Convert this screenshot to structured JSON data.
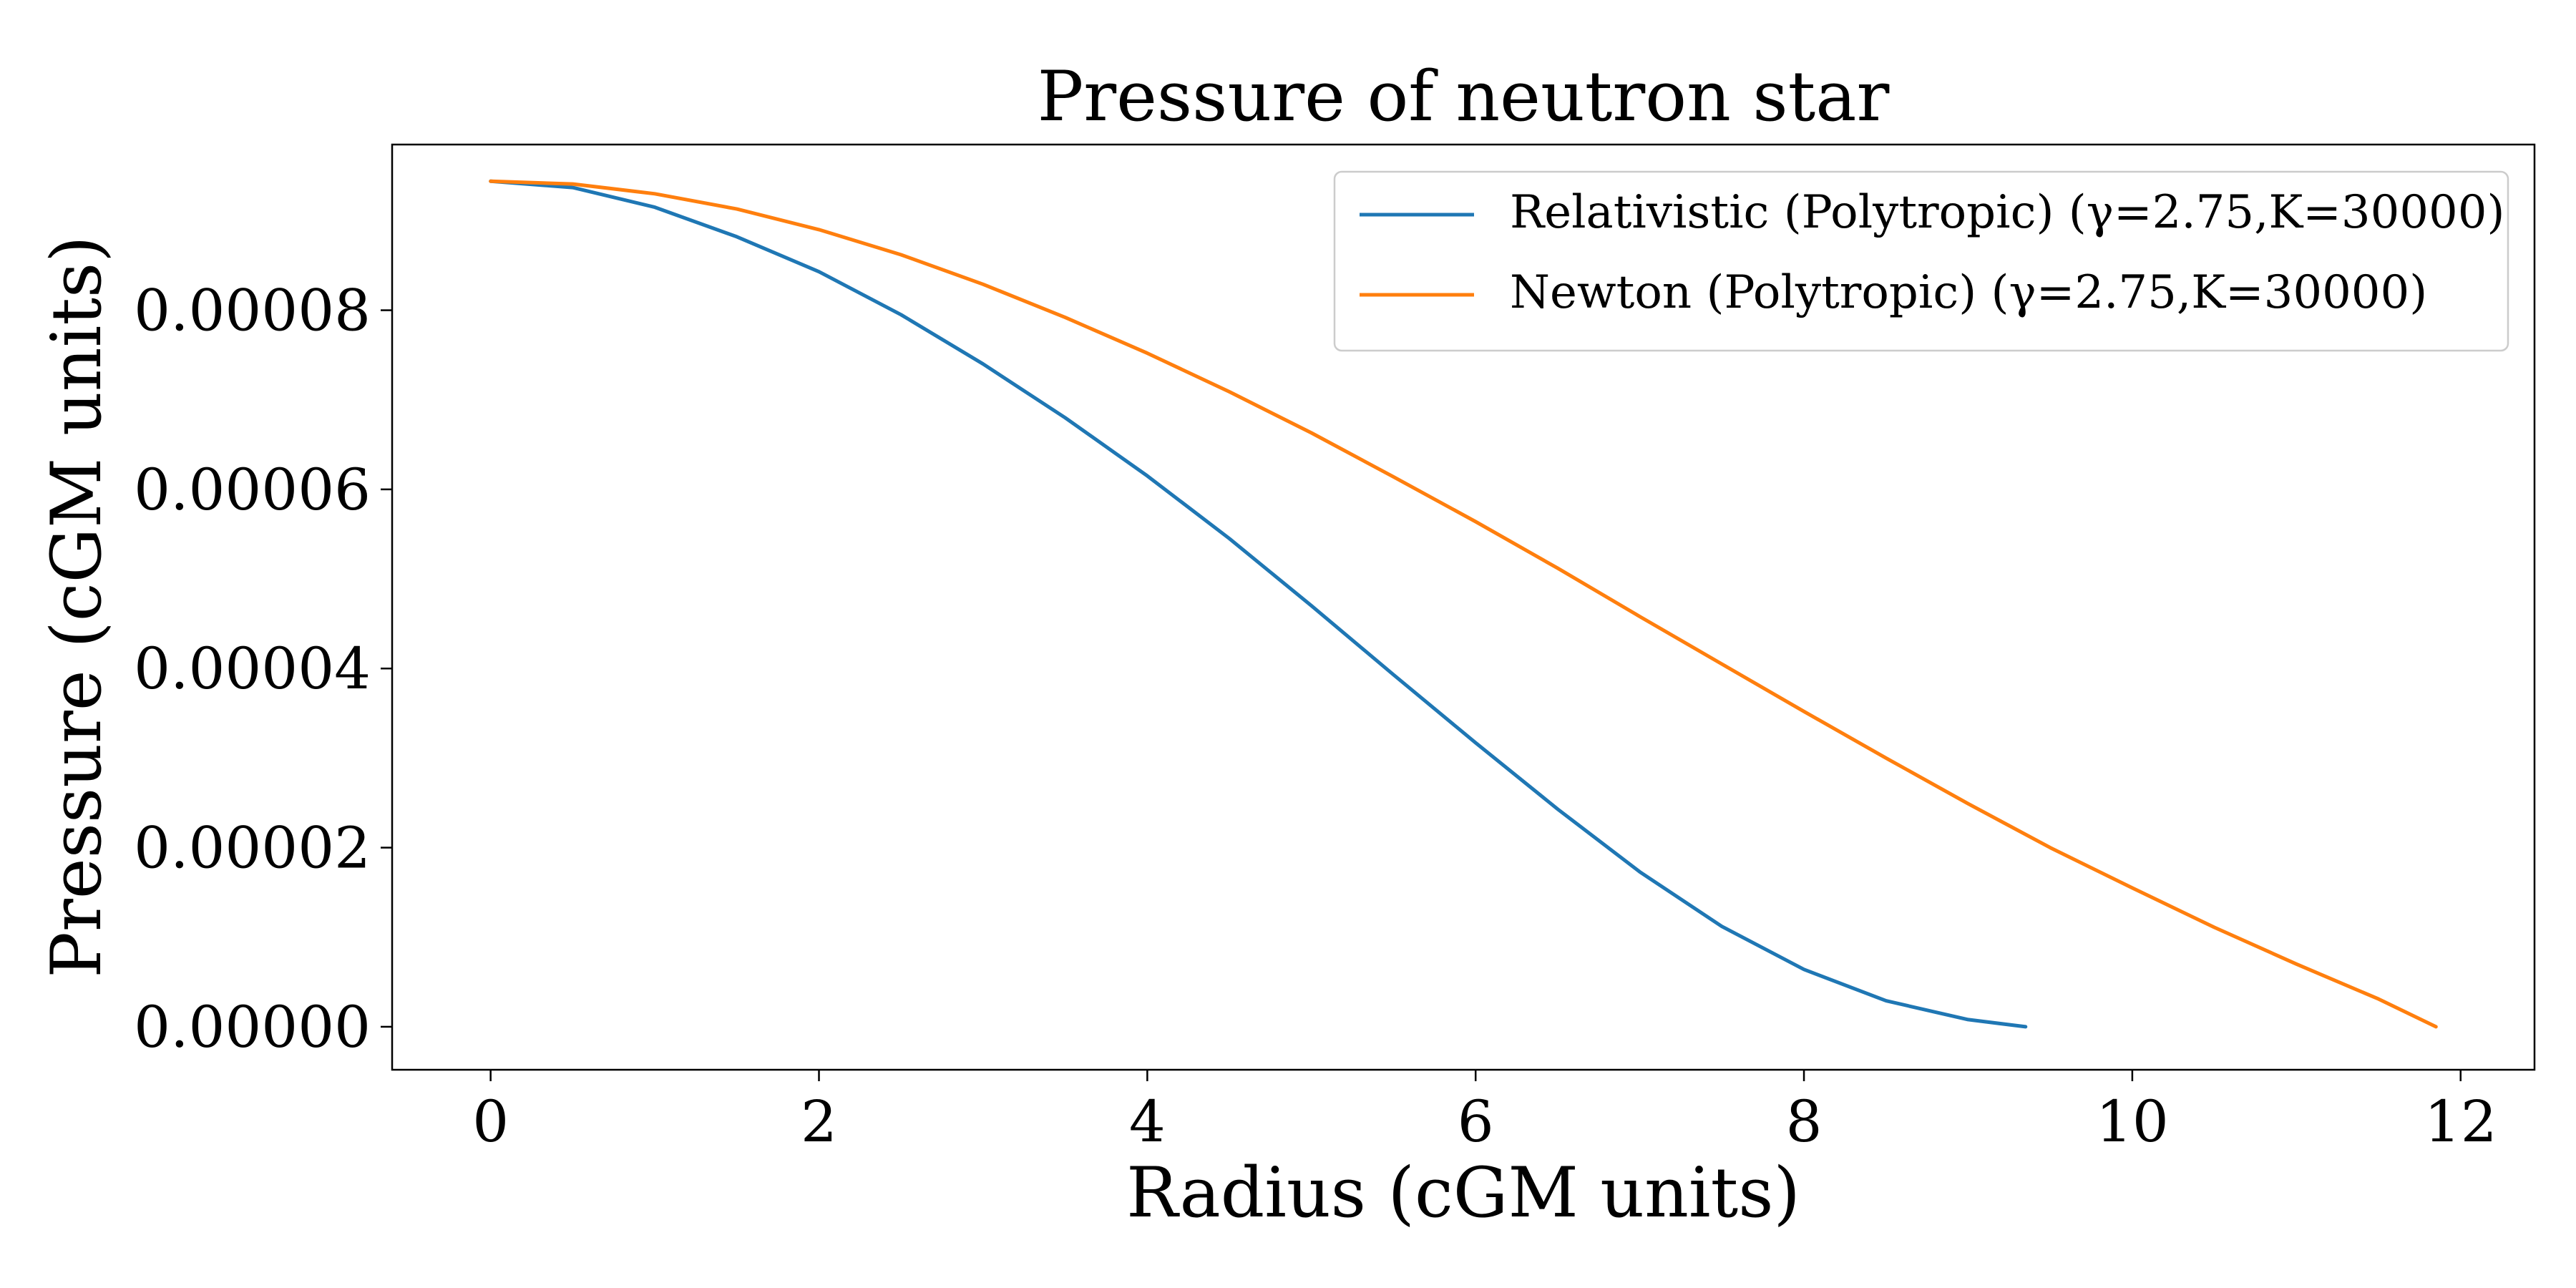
{
  "chart_data": {
    "type": "line",
    "title": "Pressure of neutron star",
    "xlabel": "Radius (cGM units)",
    "ylabel": "Pressure (cGM units)",
    "xlim": [
      -0.6,
      12.45
    ],
    "ylim": [
      -4.8e-06,
      9.85e-05
    ],
    "x_ticks": [
      0,
      2,
      4,
      6,
      8,
      10,
      12
    ],
    "x_tick_labels": [
      "0",
      "2",
      "4",
      "6",
      "8",
      "10",
      "12"
    ],
    "y_ticks": [
      0,
      2e-05,
      4e-05,
      6e-05,
      8e-05
    ],
    "y_tick_labels": [
      "0.00000",
      "0.00002",
      "0.00004",
      "0.00006",
      "0.00008"
    ],
    "grid": false,
    "legend_position": "upper right",
    "series": [
      {
        "name": "Relativistic (Polytropic) (γ=2.75,K=30000)",
        "color": "#1f77b4",
        "x": [
          0,
          0.5,
          1.0,
          1.5,
          2.0,
          2.5,
          3.0,
          3.5,
          4.0,
          4.5,
          5.0,
          5.5,
          6.0,
          6.5,
          7.0,
          7.5,
          8.0,
          8.5,
          9.0,
          9.35
        ],
        "y": [
          9.44e-05,
          9.37e-05,
          9.15e-05,
          8.82e-05,
          8.43e-05,
          7.95e-05,
          7.4e-05,
          6.8e-05,
          6.15e-05,
          5.45e-05,
          4.7e-05,
          3.93e-05,
          3.17e-05,
          2.43e-05,
          1.73e-05,
          1.12e-05,
          6.4e-06,
          2.9e-06,
          8e-07,
          0.0
        ]
      },
      {
        "name": "Newton (Polytropic) (γ=2.75,K=30000)",
        "color": "#ff7f0e",
        "x": [
          0,
          0.5,
          1.0,
          1.5,
          2.0,
          2.5,
          3.0,
          3.5,
          4.0,
          4.5,
          5.0,
          5.5,
          6.0,
          6.5,
          7.0,
          7.5,
          8.0,
          8.5,
          9.0,
          9.5,
          10.0,
          10.5,
          11.0,
          11.5,
          11.85
        ],
        "y": [
          9.44e-05,
          9.41e-05,
          9.3e-05,
          9.13e-05,
          8.9e-05,
          8.62e-05,
          8.29e-05,
          7.92e-05,
          7.52e-05,
          7.09e-05,
          6.63e-05,
          6.14e-05,
          5.64e-05,
          5.12e-05,
          4.58e-05,
          4.05e-05,
          3.52e-05,
          3e-05,
          2.49e-05,
          2e-05,
          1.55e-05,
          1.11e-05,
          7e-06,
          3.1e-06,
          0.0
        ]
      }
    ]
  }
}
